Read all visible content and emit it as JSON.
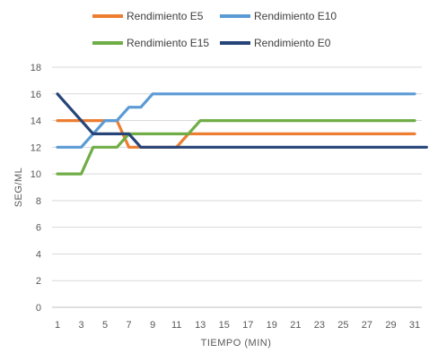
{
  "chart_data": {
    "type": "line",
    "title": "",
    "xlabel": "TIEMPO  (MIN)",
    "ylabel": "SEG/ML",
    "ylim": [
      0,
      18
    ],
    "xlim": [
      1,
      31
    ],
    "y_ticks": [
      0,
      2,
      4,
      6,
      8,
      10,
      12,
      14,
      16,
      18
    ],
    "x_ticks": [
      1,
      3,
      5,
      7,
      9,
      11,
      13,
      15,
      17,
      19,
      21,
      23,
      25,
      27,
      29,
      31
    ],
    "grid": "horizontal",
    "legend": "top",
    "series": [
      {
        "name": "Rendimiento E5",
        "color": "#ED7D31",
        "points": [
          [
            1,
            14
          ],
          [
            6,
            14
          ],
          [
            7,
            12
          ],
          [
            8,
            12
          ],
          [
            11,
            12
          ],
          [
            12,
            13
          ],
          [
            31,
            13
          ]
        ]
      },
      {
        "name": "Rendimiento E10",
        "color": "#5B9BD5",
        "points": [
          [
            1,
            12
          ],
          [
            3,
            12
          ],
          [
            4,
            13
          ],
          [
            5,
            14
          ],
          [
            6,
            14
          ],
          [
            7,
            15
          ],
          [
            8,
            15
          ],
          [
            9,
            16
          ],
          [
            31,
            16
          ]
        ]
      },
      {
        "name": "Rendimiento E15",
        "color": "#70AD47",
        "points": [
          [
            1,
            10
          ],
          [
            3,
            10
          ],
          [
            4,
            12
          ],
          [
            6,
            12
          ],
          [
            7,
            13
          ],
          [
            12,
            13
          ],
          [
            13,
            14
          ],
          [
            31,
            14
          ]
        ]
      },
      {
        "name": "Rendimiento E0",
        "color": "#264478",
        "points": [
          [
            1,
            16
          ],
          [
            3,
            14
          ],
          [
            4,
            13
          ],
          [
            7,
            13
          ],
          [
            8,
            12
          ],
          [
            31,
            12
          ],
          [
            32,
            12
          ]
        ]
      }
    ]
  }
}
